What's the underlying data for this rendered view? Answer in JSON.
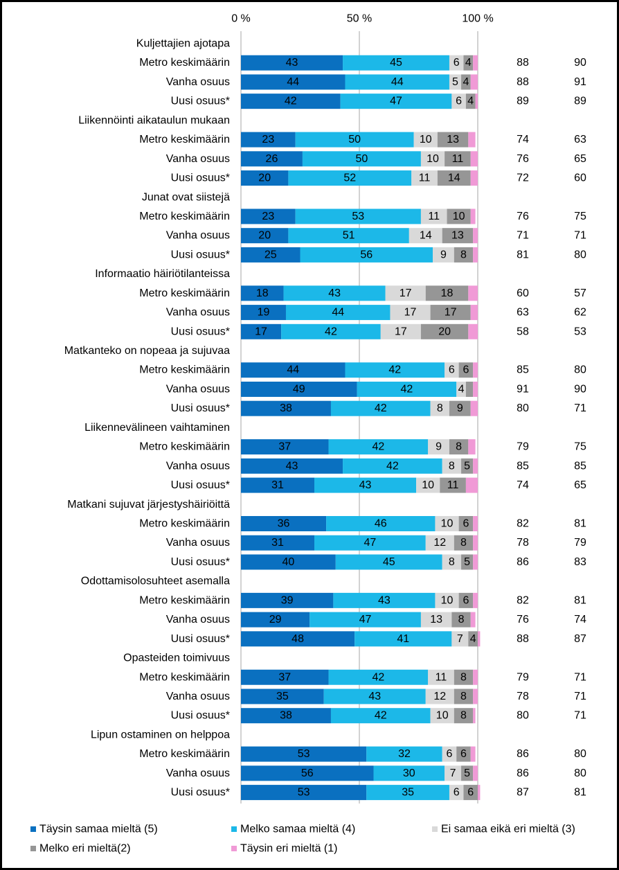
{
  "chart_data": {
    "type": "stacked-bar-horizontal",
    "categories": [
      "Kuljettajien ajotapa",
      "Metro keskimäärin",
      "Vanha osuus",
      "Uusi osuus*",
      "Liikennöinti aikataulun mukaan",
      "Metro keskimäärin",
      "Vanha osuus",
      "Uusi osuus*",
      "Junat ovat siistejä",
      "Metro keskimäärin",
      "Vanha osuus",
      "Uusi osuus*",
      "Informaatio häiriötilanteissa",
      "Metro keskimäärin",
      "Vanha osuus",
      "Uusi osuus*",
      "Matkanteko on nopeaa ja sujuvaa",
      "Metro keskimäärin",
      "Vanha osuus",
      "Uusi osuus*",
      "Liikennevälineen vaihtaminen",
      "Metro keskimäärin",
      "Vanha osuus",
      "Uusi osuus*",
      "Matkani sujuvat järjestyshäiriöittä",
      "Metro keskimäärin",
      "Vanha osuus",
      "Uusi osuus*",
      "Odottamisolosuhteet asemalla",
      "Metro keskimäärin",
      "Vanha osuus",
      "Uusi osuus*",
      "Opasteiden toimivuus",
      "Metro keskimäärin",
      "Vanha osuus",
      "Uusi osuus*",
      "Lipun ostaminen on helppoa",
      "Metro keskimäärin",
      "Vanha osuus",
      "Uusi osuus*"
    ],
    "series": [
      {
        "name": "Täysin samaa mieltä (5)",
        "color": "#0a70c0",
        "labels": true,
        "values": [
          null,
          43,
          44,
          42,
          null,
          23,
          26,
          20,
          null,
          23,
          20,
          25,
          null,
          18,
          19,
          17,
          null,
          44,
          49,
          38,
          null,
          37,
          43,
          31,
          null,
          36,
          31,
          40,
          null,
          39,
          29,
          48,
          null,
          37,
          35,
          38,
          null,
          53,
          56,
          53
        ]
      },
      {
        "name": "Melko samaa mieltä (4)",
        "color": "#1cb8e8",
        "labels": true,
        "values": [
          null,
          45,
          44,
          47,
          null,
          50,
          50,
          52,
          null,
          53,
          51,
          56,
          null,
          43,
          44,
          42,
          null,
          42,
          42,
          42,
          null,
          42,
          42,
          43,
          null,
          46,
          47,
          45,
          null,
          43,
          47,
          41,
          null,
          42,
          43,
          42,
          null,
          32,
          30,
          35
        ]
      },
      {
        "name": "Ei samaa eikä eri mieltä (3)",
        "color": "#d9d9d9",
        "labels": true,
        "values": [
          null,
          6,
          5,
          6,
          null,
          10,
          10,
          11,
          null,
          11,
          14,
          9,
          null,
          17,
          17,
          17,
          null,
          6,
          4,
          8,
          null,
          9,
          8,
          10,
          null,
          10,
          12,
          8,
          null,
          10,
          13,
          7,
          null,
          11,
          12,
          10,
          null,
          6,
          7,
          6
        ]
      },
      {
        "name": "Melko eri mieltä(2)",
        "color": "#969696",
        "labels": true,
        "values": [
          null,
          4,
          4,
          4,
          null,
          13,
          11,
          14,
          null,
          10,
          13,
          8,
          null,
          18,
          17,
          20,
          null,
          6,
          3,
          9,
          null,
          8,
          5,
          11,
          null,
          6,
          8,
          5,
          null,
          6,
          8,
          4,
          null,
          8,
          8,
          8,
          null,
          6,
          5,
          6
        ],
        "value_labels": [
          null,
          "4",
          "4",
          "4",
          null,
          "13",
          "11",
          "14",
          null,
          "10",
          "13",
          "8",
          null,
          "18",
          "17",
          "20",
          null,
          "6",
          null,
          "9",
          null,
          "8",
          "5",
          "11",
          null,
          "6",
          "8",
          "5",
          null,
          "6",
          "8",
          "4",
          null,
          "8",
          "8",
          "8",
          null,
          "6",
          "5",
          "6"
        ]
      },
      {
        "name": "Täysin eri mieltä (1)",
        "color": "#f09ad6",
        "labels": false,
        "values": [
          null,
          2,
          3,
          1,
          null,
          3,
          3,
          3,
          null,
          2,
          2,
          2,
          null,
          4,
          3,
          4,
          null,
          2,
          2,
          3,
          null,
          3,
          2,
          5,
          null,
          2,
          2,
          2,
          null,
          2,
          2,
          1,
          null,
          2,
          2,
          1,
          null,
          2,
          2,
          1
        ]
      }
    ],
    "right_columns": [
      [
        null,
        88,
        88,
        89,
        null,
        74,
        76,
        72,
        null,
        76,
        71,
        81,
        null,
        60,
        63,
        58,
        null,
        85,
        91,
        80,
        null,
        79,
        85,
        74,
        null,
        82,
        78,
        86,
        null,
        82,
        76,
        88,
        null,
        79,
        78,
        80,
        null,
        86,
        86,
        87
      ],
      [
        null,
        90,
        91,
        89,
        null,
        63,
        65,
        60,
        null,
        75,
        71,
        80,
        null,
        57,
        62,
        53,
        null,
        80,
        90,
        71,
        null,
        75,
        85,
        65,
        null,
        81,
        79,
        83,
        null,
        81,
        74,
        87,
        null,
        71,
        71,
        71,
        null,
        80,
        80,
        81
      ]
    ],
    "xlim": [
      0,
      100
    ],
    "xticks": [
      {
        "value": 0,
        "label": "0 %"
      },
      {
        "value": 50,
        "label": "50 %"
      },
      {
        "value": 100,
        "label": "100 %"
      }
    ],
    "grid": true,
    "legend": "bottom"
  }
}
